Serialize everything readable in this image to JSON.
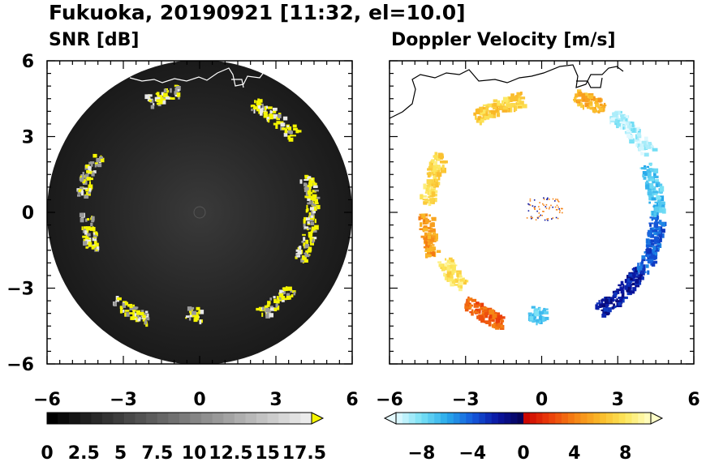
{
  "title": "Fukuoka, 20190921 [11:32, el=10.0]",
  "chart_data": [
    {
      "type": "heatmap",
      "title": "SNR [dB]",
      "xlim": [
        -6,
        6
      ],
      "ylim": [
        -6,
        6
      ],
      "x_ticks": [
        "−6",
        "−3",
        "0",
        "3",
        "6"
      ],
      "y_ticks": [
        "−6",
        "−3",
        "0",
        "3",
        "6"
      ],
      "y_tick_values": [
        -6,
        -3,
        0,
        3,
        6
      ],
      "x_tick_values": [
        -6,
        -3,
        0,
        3,
        6
      ],
      "range_circle_radius": 6,
      "colorbar": {
        "min": 0,
        "max": 18,
        "step": 0.75,
        "extend": "max",
        "tick_labels": [
          "0",
          "2.5",
          "5",
          "7.5",
          "10",
          "12.5",
          "15",
          "17.5"
        ],
        "tick_values": [
          0,
          2.5,
          5,
          7.5,
          10,
          12.5,
          15,
          17.5
        ],
        "extend_color": "#f5f500"
      },
      "echo_arcs": [
        {
          "start_deg": 100,
          "end_deg": 115,
          "r": 4.9
        },
        {
          "start_deg": 150,
          "end_deg": 172,
          "r": 4.7
        },
        {
          "start_deg": 180,
          "end_deg": 200,
          "r": 4.5
        },
        {
          "start_deg": 225,
          "end_deg": 245,
          "r": 4.7
        },
        {
          "start_deg": 262,
          "end_deg": 270,
          "r": 4.0
        },
        {
          "start_deg": 300,
          "end_deg": 320,
          "r": 4.6
        },
        {
          "start_deg": 335,
          "end_deg": 360,
          "r": 4.3
        },
        {
          "start_deg": 0,
          "end_deg": 20,
          "r": 4.4
        },
        {
          "start_deg": 40,
          "end_deg": 65,
          "r": 4.8
        }
      ]
    },
    {
      "type": "heatmap",
      "title": "Doppler Velocity [m/s]",
      "xlim": [
        -6,
        6
      ],
      "ylim": [
        -6,
        6
      ],
      "x_ticks": [
        "−6",
        "−3",
        "0",
        "3",
        "6"
      ],
      "x_tick_values": [
        -6,
        -3,
        0,
        3,
        6
      ],
      "colorbar": {
        "min": -10,
        "max": 10,
        "extend": "both",
        "tick_labels": [
          "−8",
          "−4",
          "0",
          "4",
          "8"
        ],
        "tick_values": [
          -8,
          -4,
          0,
          4,
          8
        ]
      },
      "echo_arcs": [
        {
          "start_deg": 60,
          "end_deg": 75,
          "r": 4.8,
          "v": 6
        },
        {
          "start_deg": 100,
          "end_deg": 125,
          "r": 4.6,
          "v": 7
        },
        {
          "start_deg": 150,
          "end_deg": 175,
          "r": 4.6,
          "v": 7.5
        },
        {
          "start_deg": 180,
          "end_deg": 200,
          "r": 4.6,
          "v": 5
        },
        {
          "start_deg": 205,
          "end_deg": 222,
          "r": 4.3,
          "v": 8
        },
        {
          "start_deg": 228,
          "end_deg": 250,
          "r": 4.6,
          "v": 3
        },
        {
          "start_deg": 262,
          "end_deg": 272,
          "r": 4.0,
          "v": -7
        },
        {
          "start_deg": 300,
          "end_deg": 330,
          "r": 4.4,
          "v": -2
        },
        {
          "start_deg": 330,
          "end_deg": 360,
          "r": 4.5,
          "v": -4
        },
        {
          "start_deg": 0,
          "end_deg": 25,
          "r": 4.5,
          "v": -7
        },
        {
          "start_deg": 30,
          "end_deg": 55,
          "r": 4.8,
          "v": -9
        }
      ]
    }
  ]
}
